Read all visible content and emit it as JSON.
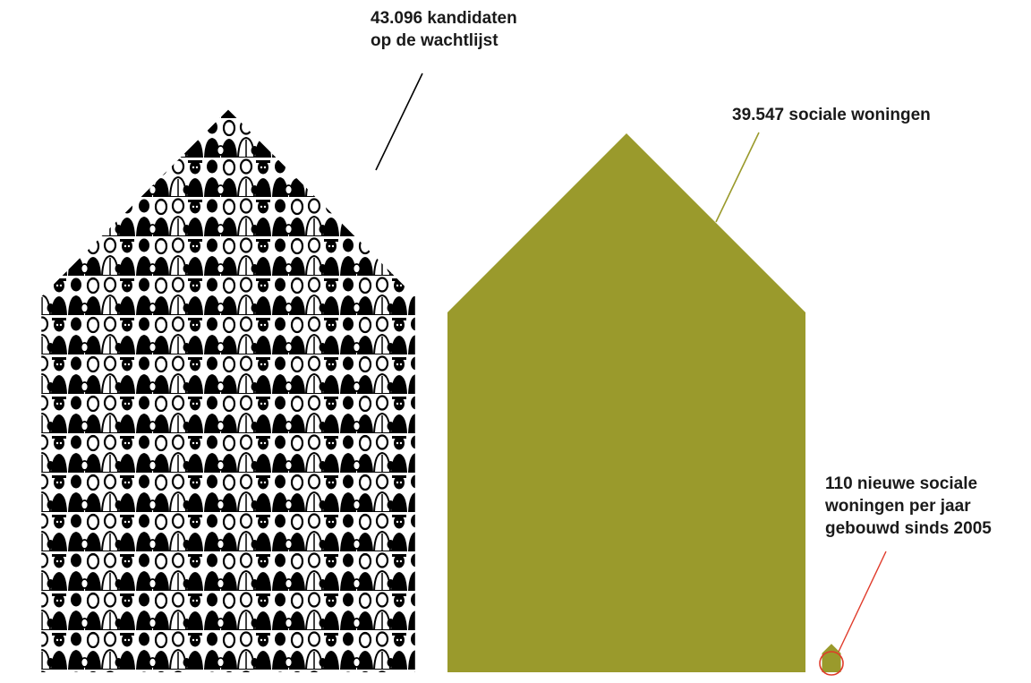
{
  "colors": {
    "crowd_ink": "#000000",
    "social_housing": "#9a9a2c",
    "new_housing_line": "#e03a2a",
    "waitlist_line": "#000000",
    "text": "#1a1a1a"
  },
  "labels": {
    "waitlist": [
      "43.096 kandidaten",
      "op de wachtlijst"
    ],
    "social": [
      "39.547 sociale woningen"
    ],
    "new": [
      "110 nieuwe sociale",
      "woningen per jaar",
      "gebouwd sinds 2005"
    ]
  },
  "chart_data": {
    "type": "area",
    "shape": "house",
    "categories": [
      "kandidaten op de wachtlijst",
      "sociale woningen",
      "nieuwe sociale woningen per jaar gebouwd sinds 2005"
    ],
    "values": [
      43096,
      39547,
      110
    ]
  }
}
